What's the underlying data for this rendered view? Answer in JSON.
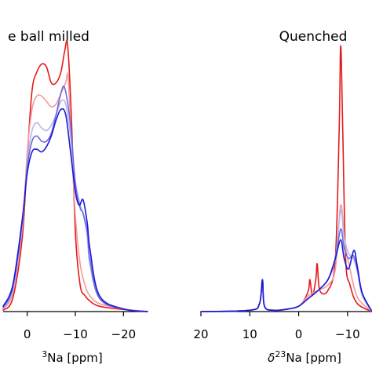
{
  "chart_data": [
    {
      "type": "line",
      "title": "e ball milled",
      "xlabel_parts": [
        "",
        "3",
        "Na [ppm]"
      ],
      "xlim": [
        5,
        -25
      ],
      "xticks": [
        0,
        -10,
        -20
      ],
      "xtick_labels": [
        "0",
        "−10",
        "−20"
      ],
      "ylim": [
        0,
        1
      ],
      "grid": false,
      "legend": "none",
      "series": [
        {
          "color": "#e41a1c",
          "points": [
            [
              5,
              0.005
            ],
            [
              3,
              0.05
            ],
            [
              1,
              0.28
            ],
            [
              0,
              0.58
            ],
            [
              -1,
              0.83
            ],
            [
              -2,
              0.9
            ],
            [
              -3,
              0.93
            ],
            [
              -4,
              0.92
            ],
            [
              -5,
              0.86
            ],
            [
              -6,
              0.86
            ],
            [
              -7,
              0.9
            ],
            [
              -7.8,
              0.98
            ],
            [
              -8.4,
              1.0
            ],
            [
              -9.2,
              0.72
            ],
            [
              -10,
              0.3
            ],
            [
              -11,
              0.1
            ],
            [
              -12,
              0.06
            ],
            [
              -13,
              0.04
            ],
            [
              -15,
              0.02
            ],
            [
              -20,
              0.008
            ],
            [
              -25,
              0.0
            ]
          ]
        },
        {
          "color": "#f39a9a",
          "points": [
            [
              5,
              0.01
            ],
            [
              3,
              0.07
            ],
            [
              1,
              0.32
            ],
            [
              0,
              0.6
            ],
            [
              -1,
              0.76
            ],
            [
              -2,
              0.81
            ],
            [
              -3,
              0.81
            ],
            [
              -4,
              0.79
            ],
            [
              -5,
              0.77
            ],
            [
              -6,
              0.78
            ],
            [
              -7,
              0.82
            ],
            [
              -8,
              0.86
            ],
            [
              -8.5,
              0.88
            ],
            [
              -9.3,
              0.6
            ],
            [
              -10,
              0.36
            ],
            [
              -11,
              0.18
            ],
            [
              -12,
              0.1
            ],
            [
              -13,
              0.06
            ],
            [
              -15,
              0.03
            ],
            [
              -20,
              0.01
            ],
            [
              -25,
              0.0
            ]
          ]
        },
        {
          "color": "#b6b6ec",
          "points": [
            [
              5,
              0.012
            ],
            [
              3,
              0.08
            ],
            [
              1,
              0.33
            ],
            [
              0,
              0.56
            ],
            [
              -1,
              0.68
            ],
            [
              -2,
              0.71
            ],
            [
              -3,
              0.69
            ],
            [
              -4,
              0.68
            ],
            [
              -5,
              0.7
            ],
            [
              -6,
              0.74
            ],
            [
              -7,
              0.79
            ],
            [
              -8,
              0.78
            ],
            [
              -9,
              0.66
            ],
            [
              -10,
              0.49
            ],
            [
              -11,
              0.4
            ],
            [
              -11.6,
              0.37
            ],
            [
              -12.5,
              0.28
            ],
            [
              -13,
              0.18
            ],
            [
              -15,
              0.05
            ],
            [
              -20,
              0.01
            ],
            [
              -25,
              0.0
            ]
          ]
        },
        {
          "color": "#6a6ae0",
          "points": [
            [
              5,
              0.015
            ],
            [
              3,
              0.09
            ],
            [
              1,
              0.34
            ],
            [
              0,
              0.54
            ],
            [
              -1,
              0.64
            ],
            [
              -2,
              0.66
            ],
            [
              -3,
              0.64
            ],
            [
              -4,
              0.64
            ],
            [
              -5,
              0.67
            ],
            [
              -6,
              0.74
            ],
            [
              -7,
              0.82
            ],
            [
              -7.8,
              0.84
            ],
            [
              -9,
              0.7
            ],
            [
              -10,
              0.48
            ],
            [
              -11,
              0.39
            ],
            [
              -11.6,
              0.37
            ],
            [
              -12.5,
              0.3
            ],
            [
              -13,
              0.2
            ],
            [
              -15,
              0.05
            ],
            [
              -20,
              0.01
            ],
            [
              -25,
              0.0
            ]
          ]
        },
        {
          "color": "#1a1ad6",
          "points": [
            [
              5,
              0.02
            ],
            [
              3,
              0.1
            ],
            [
              1,
              0.35
            ],
            [
              0,
              0.52
            ],
            [
              -1,
              0.6
            ],
            [
              -2,
              0.61
            ],
            [
              -3,
              0.6
            ],
            [
              -4,
              0.62
            ],
            [
              -5,
              0.66
            ],
            [
              -6,
              0.72
            ],
            [
              -7,
              0.76
            ],
            [
              -8,
              0.74
            ],
            [
              -9,
              0.6
            ],
            [
              -10,
              0.45
            ],
            [
              -10.8,
              0.4
            ],
            [
              -11.6,
              0.42
            ],
            [
              -12.5,
              0.33
            ],
            [
              -13,
              0.24
            ],
            [
              -15,
              0.06
            ],
            [
              -20,
              0.01
            ],
            [
              -25,
              0.0
            ]
          ]
        }
      ]
    },
    {
      "type": "line",
      "title": "Quenched",
      "xlabel_parts": [
        "δ",
        "23",
        "Na [ppm]"
      ],
      "xlim": [
        20,
        -15
      ],
      "xticks": [
        20,
        10,
        0,
        -10
      ],
      "xtick_labels": [
        "20",
        "10",
        "0",
        "−10"
      ],
      "ylim": [
        0,
        1
      ],
      "grid": false,
      "legend": "none",
      "series": [
        {
          "color": "#e41a1c",
          "points": [
            [
              20,
              0.0
            ],
            [
              10,
              0.005
            ],
            [
              8,
              0.03
            ],
            [
              7.4,
              0.12
            ],
            [
              7,
              0.02
            ],
            [
              5,
              0.005
            ],
            [
              2,
              0.01
            ],
            [
              0,
              0.02
            ],
            [
              -1,
              0.04
            ],
            [
              -2,
              0.08
            ],
            [
              -2.3,
              0.12
            ],
            [
              -2.8,
              0.06
            ],
            [
              -3.5,
              0.12
            ],
            [
              -3.8,
              0.18
            ],
            [
              -4.3,
              0.08
            ],
            [
              -6,
              0.08
            ],
            [
              -7.5,
              0.2
            ],
            [
              -8.3,
              0.7
            ],
            [
              -8.6,
              1.0
            ],
            [
              -9,
              0.7
            ],
            [
              -9.6,
              0.2
            ],
            [
              -10.5,
              0.1
            ],
            [
              -12,
              0.03
            ],
            [
              -15,
              0.0
            ]
          ]
        },
        {
          "color": "#f39a9a",
          "points": [
            [
              20,
              0.0
            ],
            [
              10,
              0.005
            ],
            [
              8,
              0.03
            ],
            [
              7.4,
              0.12
            ],
            [
              7,
              0.02
            ],
            [
              5,
              0.005
            ],
            [
              2,
              0.01
            ],
            [
              0,
              0.02
            ],
            [
              -2,
              0.06
            ],
            [
              -4,
              0.08
            ],
            [
              -6,
              0.1
            ],
            [
              -7.5,
              0.16
            ],
            [
              -8.6,
              0.4
            ],
            [
              -9.5,
              0.25
            ],
            [
              -10.5,
              0.16
            ],
            [
              -11.5,
              0.08
            ],
            [
              -12.5,
              0.04
            ],
            [
              -15,
              0.0
            ]
          ]
        },
        {
          "color": "#b6b6ec",
          "points": [
            [
              20,
              0.0
            ],
            [
              10,
              0.005
            ],
            [
              8,
              0.03
            ],
            [
              7.4,
              0.12
            ],
            [
              7,
              0.02
            ],
            [
              5,
              0.005
            ],
            [
              2,
              0.01
            ],
            [
              0,
              0.02
            ],
            [
              -2,
              0.05
            ],
            [
              -4,
              0.08
            ],
            [
              -6,
              0.12
            ],
            [
              -7.5,
              0.2
            ],
            [
              -8.6,
              0.38
            ],
            [
              -9.3,
              0.28
            ],
            [
              -10.2,
              0.22
            ],
            [
              -11.2,
              0.2
            ],
            [
              -12,
              0.15
            ],
            [
              -13,
              0.06
            ],
            [
              -15,
              0.0
            ]
          ]
        },
        {
          "color": "#6a6ae0",
          "points": [
            [
              20,
              0.0
            ],
            [
              10,
              0.005
            ],
            [
              8,
              0.03
            ],
            [
              7.4,
              0.12
            ],
            [
              7,
              0.02
            ],
            [
              5,
              0.005
            ],
            [
              2,
              0.01
            ],
            [
              0,
              0.02
            ],
            [
              -2,
              0.05
            ],
            [
              -4,
              0.08
            ],
            [
              -6,
              0.12
            ],
            [
              -7.5,
              0.2
            ],
            [
              -8.6,
              0.31
            ],
            [
              -9.3,
              0.24
            ],
            [
              -10.2,
              0.2
            ],
            [
              -11.2,
              0.21
            ],
            [
              -12,
              0.16
            ],
            [
              -13,
              0.07
            ],
            [
              -15,
              0.0
            ]
          ]
        },
        {
          "color": "#1a1ad6",
          "points": [
            [
              20,
              0.0
            ],
            [
              10,
              0.005
            ],
            [
              8,
              0.03
            ],
            [
              7.4,
              0.12
            ],
            [
              7,
              0.02
            ],
            [
              5,
              0.005
            ],
            [
              2,
              0.01
            ],
            [
              0,
              0.02
            ],
            [
              -2,
              0.05
            ],
            [
              -4,
              0.08
            ],
            [
              -6,
              0.12
            ],
            [
              -7.5,
              0.2
            ],
            [
              -8.6,
              0.27
            ],
            [
              -9.3,
              0.2
            ],
            [
              -10.2,
              0.16
            ],
            [
              -11.3,
              0.23
            ],
            [
              -12,
              0.17
            ],
            [
              -13,
              0.07
            ],
            [
              -15,
              0.0
            ]
          ]
        }
      ]
    }
  ]
}
